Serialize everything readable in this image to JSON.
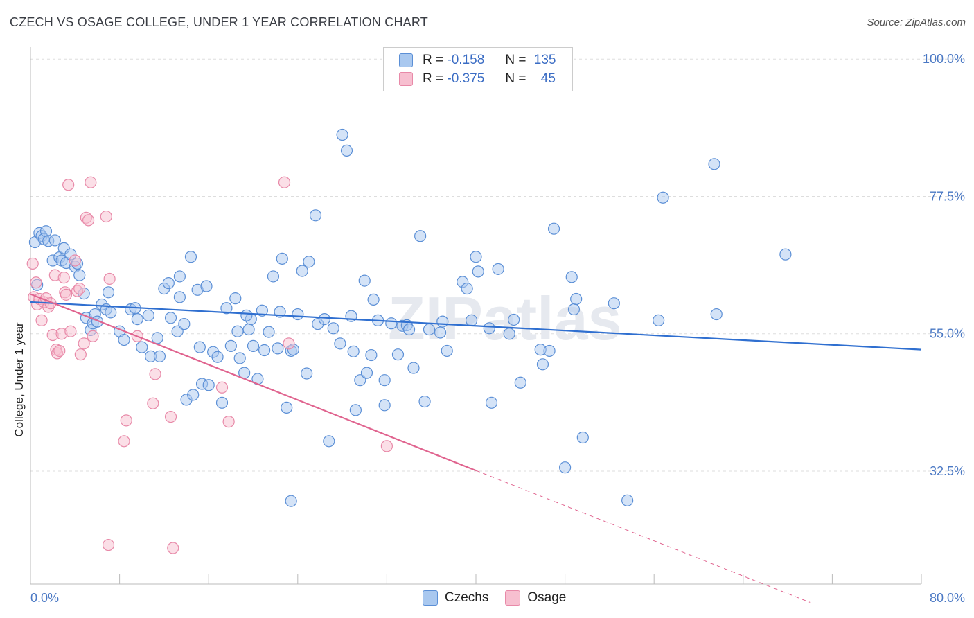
{
  "title": "CZECH VS OSAGE COLLEGE, UNDER 1 YEAR CORRELATION CHART",
  "source": "Source: ZipAtlas.com",
  "watermark": "ZIPatlas",
  "legend": {
    "rows": [
      {
        "r_label": "R =",
        "r_value": "-0.158",
        "n_label": "N =",
        "n_value": "135"
      },
      {
        "r_label": "R =",
        "r_value": "-0.375",
        "n_label": "N =",
        "n_value": "45"
      }
    ]
  },
  "bottom_legend": {
    "czechs": "Czechs",
    "osage": "Osage"
  },
  "colors": {
    "czech_fill": "#a9c8ef",
    "czech_stroke": "#5b8fd6",
    "czech_line": "#2f6fd0",
    "osage_fill": "#f7bfd0",
    "osage_stroke": "#e889a8",
    "osage_line": "#e0648f",
    "grid": "#dddddd",
    "tick_text": "#4a78c4"
  },
  "chart_data": {
    "type": "scatter",
    "title": "CZECH VS OSAGE COLLEGE, UNDER 1 YEAR CORRELATION CHART",
    "xlabel": "",
    "ylabel": "College, Under 1 year",
    "xlim": [
      0,
      80
    ],
    "ylim": [
      14,
      104
    ],
    "x_tick_labels": [
      "0.0%",
      "80.0%"
    ],
    "y_ticks": [
      32.5,
      55.0,
      77.5,
      100.0
    ],
    "y_tick_labels": [
      "32.5%",
      "55.0%",
      "77.5%",
      "100.0%"
    ],
    "grid": true,
    "legend_position": "top-center",
    "series": [
      {
        "name": "Czechs",
        "r": -0.158,
        "n": 135,
        "trend": {
          "x": [
            0,
            80
          ],
          "y": [
            60.2,
            52.4
          ]
        },
        "points": [
          [
            0.4,
            70.0
          ],
          [
            0.6,
            63.0
          ],
          [
            0.8,
            71.5
          ],
          [
            1.0,
            71.0
          ],
          [
            1.2,
            70.5
          ],
          [
            1.4,
            71.8
          ],
          [
            1.6,
            70.2
          ],
          [
            2.0,
            67.0
          ],
          [
            2.2,
            70.3
          ],
          [
            2.6,
            67.5
          ],
          [
            2.8,
            67.0
          ],
          [
            3.0,
            69.0
          ],
          [
            3.2,
            66.6
          ],
          [
            3.6,
            68.0
          ],
          [
            4.0,
            66.0
          ],
          [
            4.2,
            66.5
          ],
          [
            4.4,
            64.6
          ],
          [
            4.8,
            61.6
          ],
          [
            5.0,
            57.6
          ],
          [
            5.4,
            55.6
          ],
          [
            5.6,
            56.7
          ],
          [
            5.8,
            58.2
          ],
          [
            6.4,
            59.8
          ],
          [
            6.8,
            59.0
          ],
          [
            7.0,
            61.8
          ],
          [
            7.2,
            58.5
          ],
          [
            8.0,
            55.4
          ],
          [
            8.4,
            54.0
          ],
          [
            9.0,
            59.0
          ],
          [
            9.4,
            59.2
          ],
          [
            10.0,
            52.8
          ],
          [
            10.6,
            58.0
          ],
          [
            10.8,
            51.3
          ],
          [
            11.4,
            54.3
          ],
          [
            11.6,
            51.3
          ],
          [
            12.0,
            62.4
          ],
          [
            12.4,
            63.3
          ],
          [
            12.6,
            57.6
          ],
          [
            13.2,
            55.4
          ],
          [
            13.4,
            64.4
          ],
          [
            13.8,
            56.6
          ],
          [
            14.0,
            44.2
          ],
          [
            14.4,
            67.6
          ],
          [
            14.6,
            45.0
          ],
          [
            15.0,
            62.2
          ],
          [
            15.4,
            46.8
          ],
          [
            15.8,
            62.8
          ],
          [
            16.0,
            46.6
          ],
          [
            16.4,
            52.0
          ],
          [
            16.8,
            51.2
          ],
          [
            17.2,
            43.7
          ],
          [
            17.6,
            59.2
          ],
          [
            18.0,
            53.0
          ],
          [
            18.4,
            60.8
          ],
          [
            18.6,
            55.4
          ],
          [
            18.8,
            51.0
          ],
          [
            19.2,
            48.6
          ],
          [
            19.6,
            55.7
          ],
          [
            19.8,
            57.4
          ],
          [
            20.0,
            53.0
          ],
          [
            20.4,
            47.6
          ],
          [
            20.8,
            58.8
          ],
          [
            21.0,
            52.3
          ],
          [
            21.4,
            55.3
          ],
          [
            21.8,
            64.4
          ],
          [
            22.2,
            52.6
          ],
          [
            22.4,
            58.6
          ],
          [
            22.6,
            67.3
          ],
          [
            23.0,
            42.9
          ],
          [
            23.4,
            52.2
          ],
          [
            23.6,
            52.4
          ],
          [
            23.4,
            27.6
          ],
          [
            24.4,
            65.3
          ],
          [
            24.8,
            48.5
          ],
          [
            25.0,
            66.8
          ],
          [
            25.6,
            74.4
          ],
          [
            25.8,
            56.6
          ],
          [
            26.4,
            57.4
          ],
          [
            26.8,
            37.4
          ],
          [
            27.2,
            55.9
          ],
          [
            27.8,
            53.4
          ],
          [
            28.0,
            87.6
          ],
          [
            28.4,
            85.0
          ],
          [
            28.8,
            57.9
          ],
          [
            29.0,
            52.1
          ],
          [
            29.2,
            42.5
          ],
          [
            29.6,
            47.4
          ],
          [
            30.0,
            63.7
          ],
          [
            30.6,
            51.5
          ],
          [
            30.8,
            60.6
          ],
          [
            31.2,
            57.2
          ],
          [
            31.8,
            47.4
          ],
          [
            31.8,
            43.3
          ],
          [
            32.4,
            56.7
          ],
          [
            33.0,
            51.6
          ],
          [
            33.4,
            56.3
          ],
          [
            33.8,
            56.4
          ],
          [
            34.0,
            55.7
          ],
          [
            34.4,
            49.4
          ],
          [
            35.0,
            71.0
          ],
          [
            35.4,
            43.9
          ],
          [
            35.8,
            55.7
          ],
          [
            37.0,
            57.0
          ],
          [
            37.4,
            52.2
          ],
          [
            38.8,
            63.5
          ],
          [
            39.2,
            62.4
          ],
          [
            39.6,
            57.2
          ],
          [
            40.0,
            67.6
          ],
          [
            40.2,
            65.2
          ],
          [
            41.2,
            55.9
          ],
          [
            41.4,
            43.7
          ],
          [
            42.0,
            65.6
          ],
          [
            43.0,
            55.0
          ],
          [
            43.4,
            57.3
          ],
          [
            44.0,
            47.0
          ],
          [
            45.8,
            52.4
          ],
          [
            46.0,
            50.0
          ],
          [
            46.6,
            52.2
          ],
          [
            47.0,
            72.2
          ],
          [
            48.0,
            33.1
          ],
          [
            48.6,
            64.3
          ],
          [
            48.8,
            59.0
          ],
          [
            49.0,
            60.7
          ],
          [
            49.6,
            38.0
          ],
          [
            52.4,
            60.0
          ],
          [
            53.6,
            27.7
          ],
          [
            56.4,
            57.2
          ],
          [
            56.8,
            77.3
          ],
          [
            61.4,
            82.8
          ],
          [
            61.6,
            58.2
          ],
          [
            67.8,
            68.0
          ],
          [
            13.4,
            61.0
          ],
          [
            6.0,
            57.0
          ],
          [
            9.6,
            57.4
          ],
          [
            24.0,
            58.2
          ],
          [
            19.4,
            58.0
          ],
          [
            36.8,
            55.2
          ],
          [
            30.2,
            48.6
          ],
          [
            15.2,
            52.8
          ]
        ]
      },
      {
        "name": "Osage",
        "r": -0.375,
        "n": 45,
        "trend": {
          "x": [
            0,
            40
          ],
          "y": [
            61.5,
            32.6
          ]
        },
        "trend_dashed": {
          "x": [
            40,
            70
          ],
          "y": [
            32.6,
            11.0
          ]
        },
        "points": [
          [
            0.2,
            66.5
          ],
          [
            0.3,
            61.0
          ],
          [
            0.5,
            63.4
          ],
          [
            0.6,
            59.8
          ],
          [
            0.8,
            60.7
          ],
          [
            1.0,
            57.2
          ],
          [
            1.2,
            60.2
          ],
          [
            1.4,
            60.8
          ],
          [
            1.6,
            59.4
          ],
          [
            1.8,
            60.0
          ],
          [
            2.0,
            54.8
          ],
          [
            2.2,
            64.6
          ],
          [
            2.3,
            52.4
          ],
          [
            2.4,
            51.8
          ],
          [
            2.6,
            52.2
          ],
          [
            2.8,
            55.0
          ],
          [
            3.0,
            64.2
          ],
          [
            3.1,
            61.8
          ],
          [
            3.2,
            61.4
          ],
          [
            3.4,
            79.4
          ],
          [
            3.6,
            55.4
          ],
          [
            4.0,
            67.0
          ],
          [
            4.2,
            62.0
          ],
          [
            4.4,
            62.4
          ],
          [
            4.5,
            51.6
          ],
          [
            4.8,
            53.4
          ],
          [
            5.0,
            74.0
          ],
          [
            5.2,
            73.6
          ],
          [
            5.4,
            79.8
          ],
          [
            5.6,
            54.6
          ],
          [
            6.8,
            74.2
          ],
          [
            7.1,
            64.0
          ],
          [
            8.4,
            37.4
          ],
          [
            8.6,
            40.8
          ],
          [
            7.0,
            20.4
          ],
          [
            9.6,
            54.6
          ],
          [
            11.0,
            43.6
          ],
          [
            11.2,
            48.4
          ],
          [
            12.6,
            41.4
          ],
          [
            12.8,
            19.9
          ],
          [
            17.2,
            46.2
          ],
          [
            17.8,
            40.6
          ],
          [
            22.8,
            79.8
          ],
          [
            23.2,
            53.4
          ],
          [
            32.0,
            36.6
          ]
        ]
      }
    ]
  }
}
